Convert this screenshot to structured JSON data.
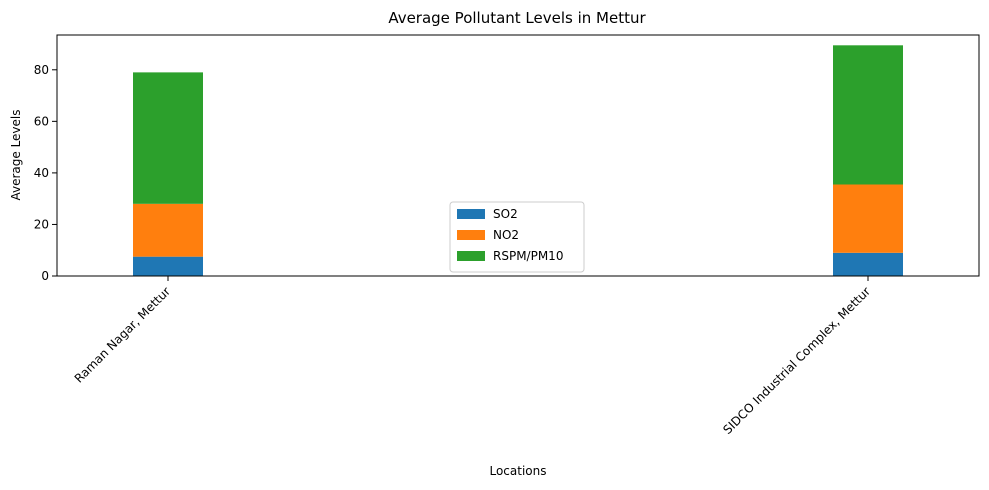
{
  "chart_data": {
    "type": "bar",
    "stacked": true,
    "title": "Average Pollutant Levels in Mettur",
    "xlabel": "Locations",
    "ylabel": "Average Levels",
    "categories": [
      "Raman Nagar, Mettur",
      "SIDCO Industrial Complex, Mettur"
    ],
    "series": [
      {
        "name": "SO2",
        "color": "#1f77b4",
        "values": [
          7.5,
          9.0
        ]
      },
      {
        "name": "NO2",
        "color": "#ff7f0e",
        "values": [
          20.5,
          26.5
        ]
      },
      {
        "name": "RSPM/PM10",
        "color": "#2ca02c",
        "values": [
          51.0,
          54.0
        ]
      }
    ],
    "ylim": [
      0,
      93.5
    ],
    "yticks": [
      0,
      20,
      40,
      60,
      80
    ],
    "grid": false,
    "legend": "center-bottom"
  }
}
